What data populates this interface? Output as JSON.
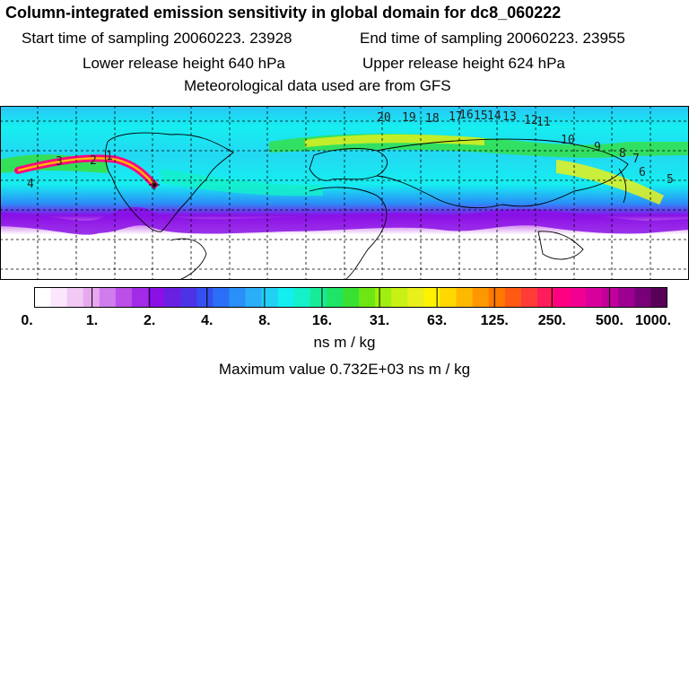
{
  "header": {
    "title": "Column-integrated emission sensitivity in global domain for dc8_060222",
    "start_label": "Start time of sampling 20060223. 23928",
    "end_label": "End time of sampling 20060223. 23955",
    "lower_label": "Lower release height  640 hPa",
    "upper_label": "Upper release height  624 hPa",
    "met_label": "Meteorological data used are from GFS"
  },
  "map": {
    "day_labels": [
      "20",
      "19",
      "18",
      "17",
      "16",
      "15",
      "14",
      "13",
      "12",
      "11",
      "10",
      "9",
      "8",
      "7",
      "6",
      "5",
      "4",
      "3",
      "2",
      "1"
    ],
    "plume_color": "#e6007a"
  },
  "colorbar": {
    "tick_labels": [
      "0.",
      "1.",
      "2.",
      "4.",
      "8.",
      "16.",
      "31.",
      "63.",
      "125.",
      "250.",
      "500.",
      "1000."
    ],
    "colors": [
      "#ffffff",
      "#fbe6fb",
      "#f2c8f5",
      "#e8a8f0",
      "#d07cec",
      "#bb4fe8",
      "#a32ae6",
      "#8a10e6",
      "#6a20e0",
      "#4d33e6",
      "#3550f0",
      "#2a6ff6",
      "#2a8ff8",
      "#29aef7",
      "#22d0f4",
      "#14eef0",
      "#14f0c8",
      "#16ec98",
      "#1ee468",
      "#38e032",
      "#6ee614",
      "#a0ee10",
      "#c8f014",
      "#e8f01c",
      "#fff200",
      "#ffd800",
      "#ffb800",
      "#ff9800",
      "#ff7800",
      "#ff5a14",
      "#ff3c36",
      "#ff1c5a",
      "#ff0080",
      "#f20092",
      "#d8009c",
      "#c00098",
      "#9c0090",
      "#780078",
      "#580058"
    ],
    "units": "ns m / kg",
    "max_label": "Maximum value  0.732E+03 ns m / kg"
  }
}
